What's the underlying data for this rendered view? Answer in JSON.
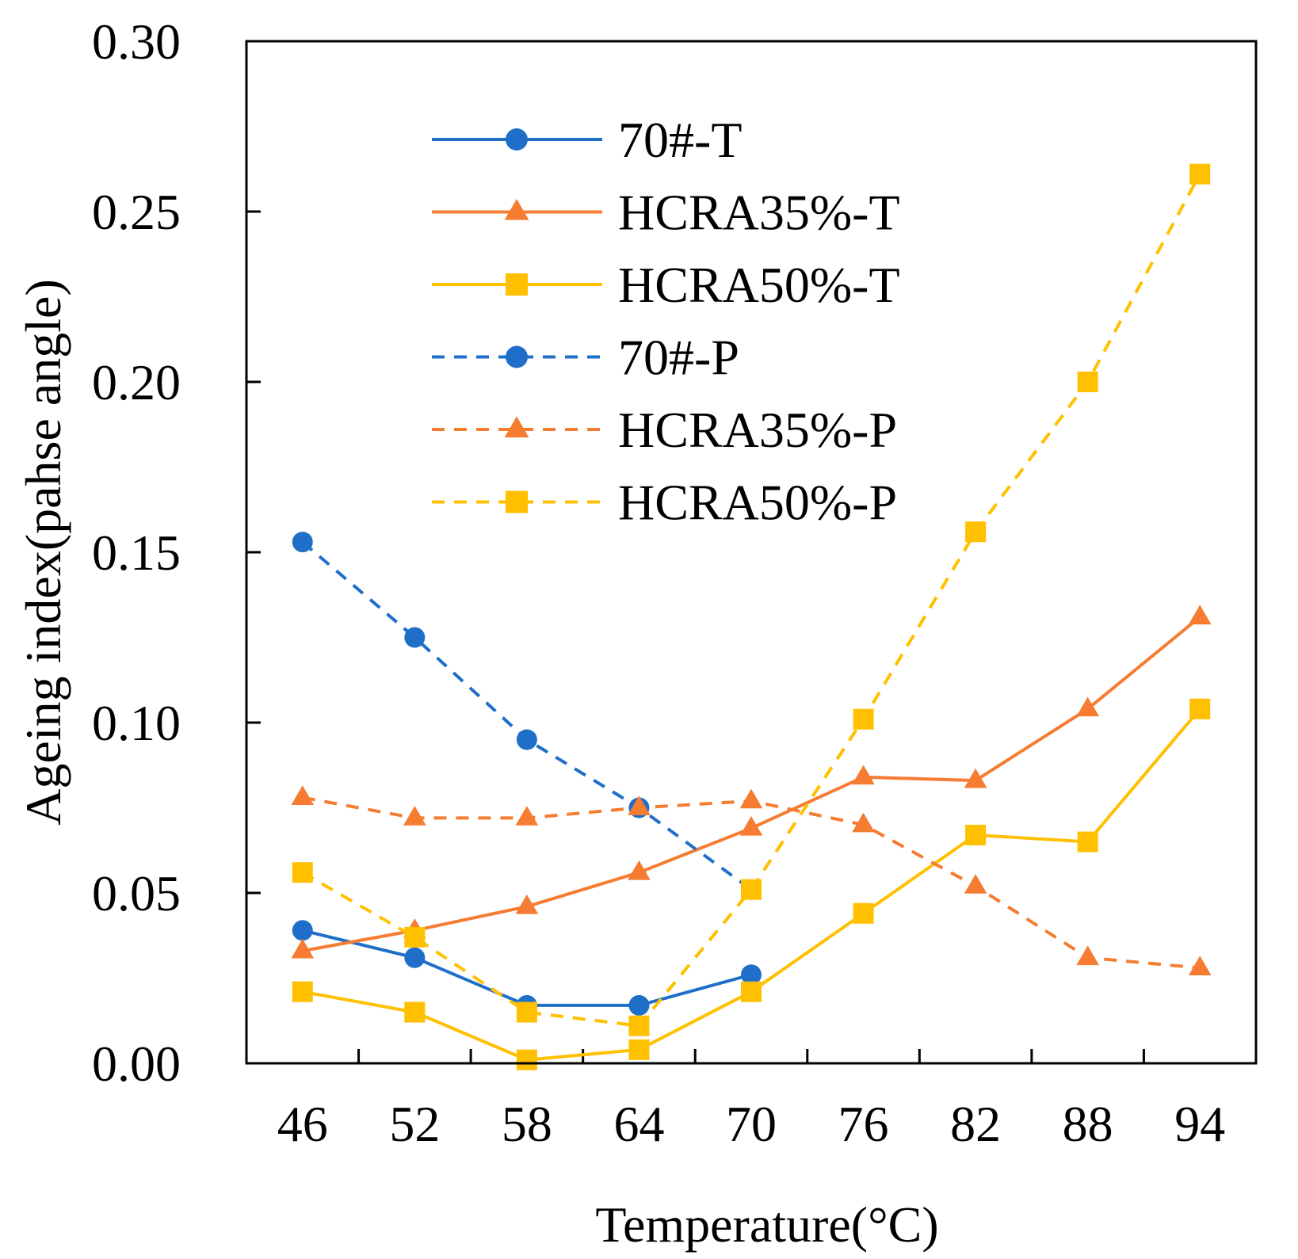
{
  "chart_data": {
    "type": "line",
    "title": "",
    "xlabel": "Temperature(°C)",
    "ylabel": "Ageing index(pahse angle)",
    "categories": [
      "46",
      "52",
      "58",
      "64",
      "70",
      "76",
      "82",
      "88",
      "94"
    ],
    "ylim": [
      0,
      0.3
    ],
    "yticks": [
      "0.00",
      "0.05",
      "0.10",
      "0.15",
      "0.20",
      "0.25",
      "0.30"
    ],
    "legend_position": "top-center",
    "series": [
      {
        "name": "70#-T",
        "color": "#1f6fc8",
        "marker": "circle",
        "dash": "solid",
        "values": [
          0.039,
          0.031,
          0.017,
          0.017,
          0.026,
          null,
          null,
          null,
          null
        ]
      },
      {
        "name": "HCRA35%-T",
        "color": "#f57c30",
        "marker": "triangle",
        "dash": "solid",
        "values": [
          0.033,
          0.039,
          0.046,
          0.056,
          0.069,
          0.084,
          0.083,
          0.104,
          0.131
        ]
      },
      {
        "name": "HCRA50%-T",
        "color": "#ffc000",
        "marker": "square",
        "dash": "solid",
        "values": [
          0.021,
          0.015,
          0.001,
          0.004,
          0.021,
          0.044,
          0.067,
          0.065,
          0.104
        ]
      },
      {
        "name": "70#-P",
        "color": "#1f6fc8",
        "marker": "circle",
        "dash": "dashed",
        "values": [
          0.153,
          0.125,
          0.095,
          0.075,
          0.051,
          null,
          null,
          null,
          null
        ]
      },
      {
        "name": "HCRA35%-P",
        "color": "#f57c30",
        "marker": "triangle",
        "dash": "dashed",
        "values": [
          0.078,
          0.072,
          0.072,
          0.075,
          0.077,
          0.07,
          0.052,
          0.031,
          0.028
        ]
      },
      {
        "name": "HCRA50%-P",
        "color": "#ffc000",
        "marker": "square",
        "dash": "dashed",
        "values": [
          0.056,
          0.037,
          0.015,
          0.011,
          0.051,
          0.101,
          0.156,
          0.2,
          0.261
        ]
      }
    ]
  }
}
